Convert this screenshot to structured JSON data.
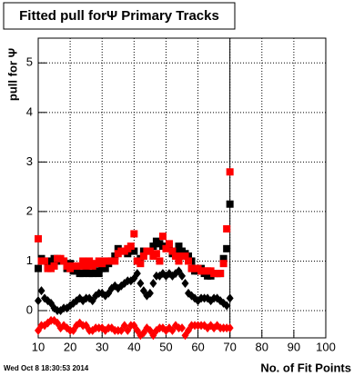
{
  "chart_data": {
    "type": "scatter",
    "title": "Fitted pull forΨ  Primary Tracks",
    "y_label": "pull for Ψ",
    "x_label": "No. of Fit Points",
    "footer": "Wed Oct  8 18:30:53 2014",
    "xlim": [
      10,
      100
    ],
    "ylim": [
      -0.55,
      5.5
    ],
    "xticks": [
      10,
      20,
      30,
      40,
      50,
      60,
      70,
      80,
      90,
      100
    ],
    "yticks": [
      0,
      1,
      2,
      3,
      4,
      5
    ],
    "grid": true,
    "x": [
      10,
      11,
      12,
      13,
      14,
      15,
      16,
      17,
      18,
      19,
      20,
      21,
      22,
      23,
      24,
      25,
      26,
      27,
      28,
      29,
      30,
      31,
      32,
      33,
      34,
      35,
      36,
      37,
      38,
      39,
      40,
      41,
      42,
      43,
      44,
      45,
      46,
      47,
      48,
      49,
      50,
      51,
      52,
      53,
      54,
      55,
      56,
      57,
      58,
      59,
      60,
      61,
      62,
      63,
      64,
      65,
      66,
      67,
      68,
      69,
      70
    ],
    "series": [
      {
        "color": "#000000",
        "marker": "square",
        "values": [
          0.85,
          1.05,
          1.0,
          0.9,
          1.0,
          1.05,
          1.0,
          1.0,
          1.0,
          0.85,
          0.95,
          0.8,
          0.8,
          0.75,
          0.75,
          0.8,
          0.75,
          0.75,
          0.8,
          0.75,
          0.85,
          0.85,
          0.95,
          1.0,
          1.1,
          1.25,
          1.2,
          1.2,
          1.15,
          1.2,
          1.2,
          1.0,
          1.05,
          1.2,
          1.2,
          1.2,
          1.3,
          1.4,
          1.35,
          1.3,
          1.3,
          1.3,
          1.15,
          1.2,
          1.3,
          1.2,
          1.15,
          1.1,
          1.0,
          0.8,
          0.8,
          0.85,
          0.75,
          0.7,
          0.7,
          0.75,
          0.75,
          0.75,
          1.05,
          1.25,
          2.15
        ]
      },
      {
        "color": "#ff0000",
        "marker": "square",
        "values": [
          1.45,
          1.0,
          1.0,
          0.85,
          0.85,
          0.9,
          1.05,
          1.05,
          1.0,
          0.9,
          0.85,
          0.9,
          0.9,
          0.9,
          1.0,
          0.9,
          1.0,
          0.9,
          0.95,
          1.0,
          0.95,
          1.0,
          1.0,
          1.0,
          1.0,
          1.15,
          1.2,
          1.2,
          1.25,
          1.3,
          1.55,
          1.0,
          0.95,
          1.1,
          1.2,
          1.2,
          1.1,
          1.15,
          1.0,
          1.5,
          1.25,
          1.35,
          1.2,
          1.1,
          1.0,
          1.1,
          1.1,
          1.0,
          0.85,
          0.85,
          0.85,
          0.8,
          0.8,
          0.8,
          0.8,
          0.75,
          0.75,
          0.75,
          0.95,
          1.65,
          2.8
        ]
      },
      {
        "color": "#000000",
        "marker": "diamond",
        "values": [
          0.2,
          0.4,
          0.25,
          0.2,
          0.15,
          0.05,
          0.0,
          0.0,
          0.05,
          0.05,
          0.1,
          0.15,
          0.2,
          0.25,
          0.2,
          0.25,
          0.25,
          0.2,
          0.3,
          0.35,
          0.35,
          0.3,
          0.35,
          0.45,
          0.5,
          0.45,
          0.5,
          0.55,
          0.6,
          0.6,
          0.65,
          0.75,
          0.55,
          0.4,
          0.3,
          0.35,
          0.55,
          0.7,
          0.7,
          0.75,
          0.7,
          0.75,
          0.7,
          0.75,
          0.8,
          0.7,
          0.55,
          0.35,
          0.3,
          0.25,
          0.2,
          0.25,
          0.25,
          0.25,
          0.2,
          0.25,
          0.25,
          0.2,
          0.15,
          0.1,
          0.25
        ]
      },
      {
        "color": "#ff0000",
        "marker": "diamond",
        "values": [
          -0.4,
          -0.3,
          -0.3,
          -0.25,
          -0.2,
          -0.2,
          -0.25,
          -0.35,
          -0.3,
          -0.35,
          -0.4,
          -0.4,
          -0.3,
          -0.25,
          -0.3,
          -0.3,
          -0.4,
          -0.4,
          -0.35,
          -0.35,
          -0.35,
          -0.4,
          -0.35,
          -0.35,
          -0.4,
          -0.4,
          -0.4,
          -0.3,
          -0.4,
          -0.3,
          -0.3,
          -0.4,
          -0.5,
          -0.45,
          -0.35,
          -0.4,
          -0.5,
          -0.4,
          -0.35,
          -0.35,
          -0.4,
          -0.35,
          -0.4,
          -0.3,
          -0.35,
          -0.35,
          -0.5,
          -0.4,
          -0.3,
          -0.3,
          -0.3,
          -0.3,
          -0.3,
          -0.35,
          -0.3,
          -0.35,
          -0.3,
          -0.35,
          -0.35,
          -0.35,
          -0.35
        ]
      }
    ]
  }
}
